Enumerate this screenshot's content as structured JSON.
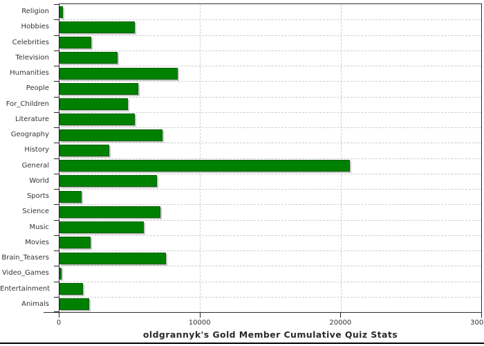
{
  "chart_data": {
    "type": "bar",
    "orientation": "horizontal",
    "title": "oldgrannyk's Gold Member Cumulative Quiz Stats",
    "categories": [
      "Religion",
      "Hobbies",
      "Celebrities",
      "Television",
      "Humanities",
      "People",
      "For_Children",
      "Literature",
      "Geography",
      "History",
      "General",
      "World",
      "Sports",
      "Science",
      "Music",
      "Movies",
      "Brain_Teasers",
      "Video_Games",
      "Entertainment",
      "Animals"
    ],
    "values": [
      250,
      5350,
      2250,
      4150,
      8400,
      5600,
      4850,
      5350,
      7350,
      3550,
      20650,
      6950,
      1550,
      7200,
      6000,
      2200,
      7550,
      150,
      1650,
      2100
    ],
    "xlabel": "",
    "ylabel": "",
    "xlim": [
      0,
      30000
    ],
    "x_ticks": [
      0,
      10000,
      20000,
      30000
    ],
    "x_tick_labels": [
      "0",
      "10000",
      "20000",
      "30000"
    ],
    "grid": "dashed",
    "legend_position": "none",
    "bar_color": "#008000",
    "bar_border_color": "#006000",
    "bar_shadow_color": "#c6c6c6",
    "grid_color": "#cccccc",
    "axis_color": "#2f2f2f",
    "text_color": "#333333",
    "background_color": "#ffffff"
  }
}
